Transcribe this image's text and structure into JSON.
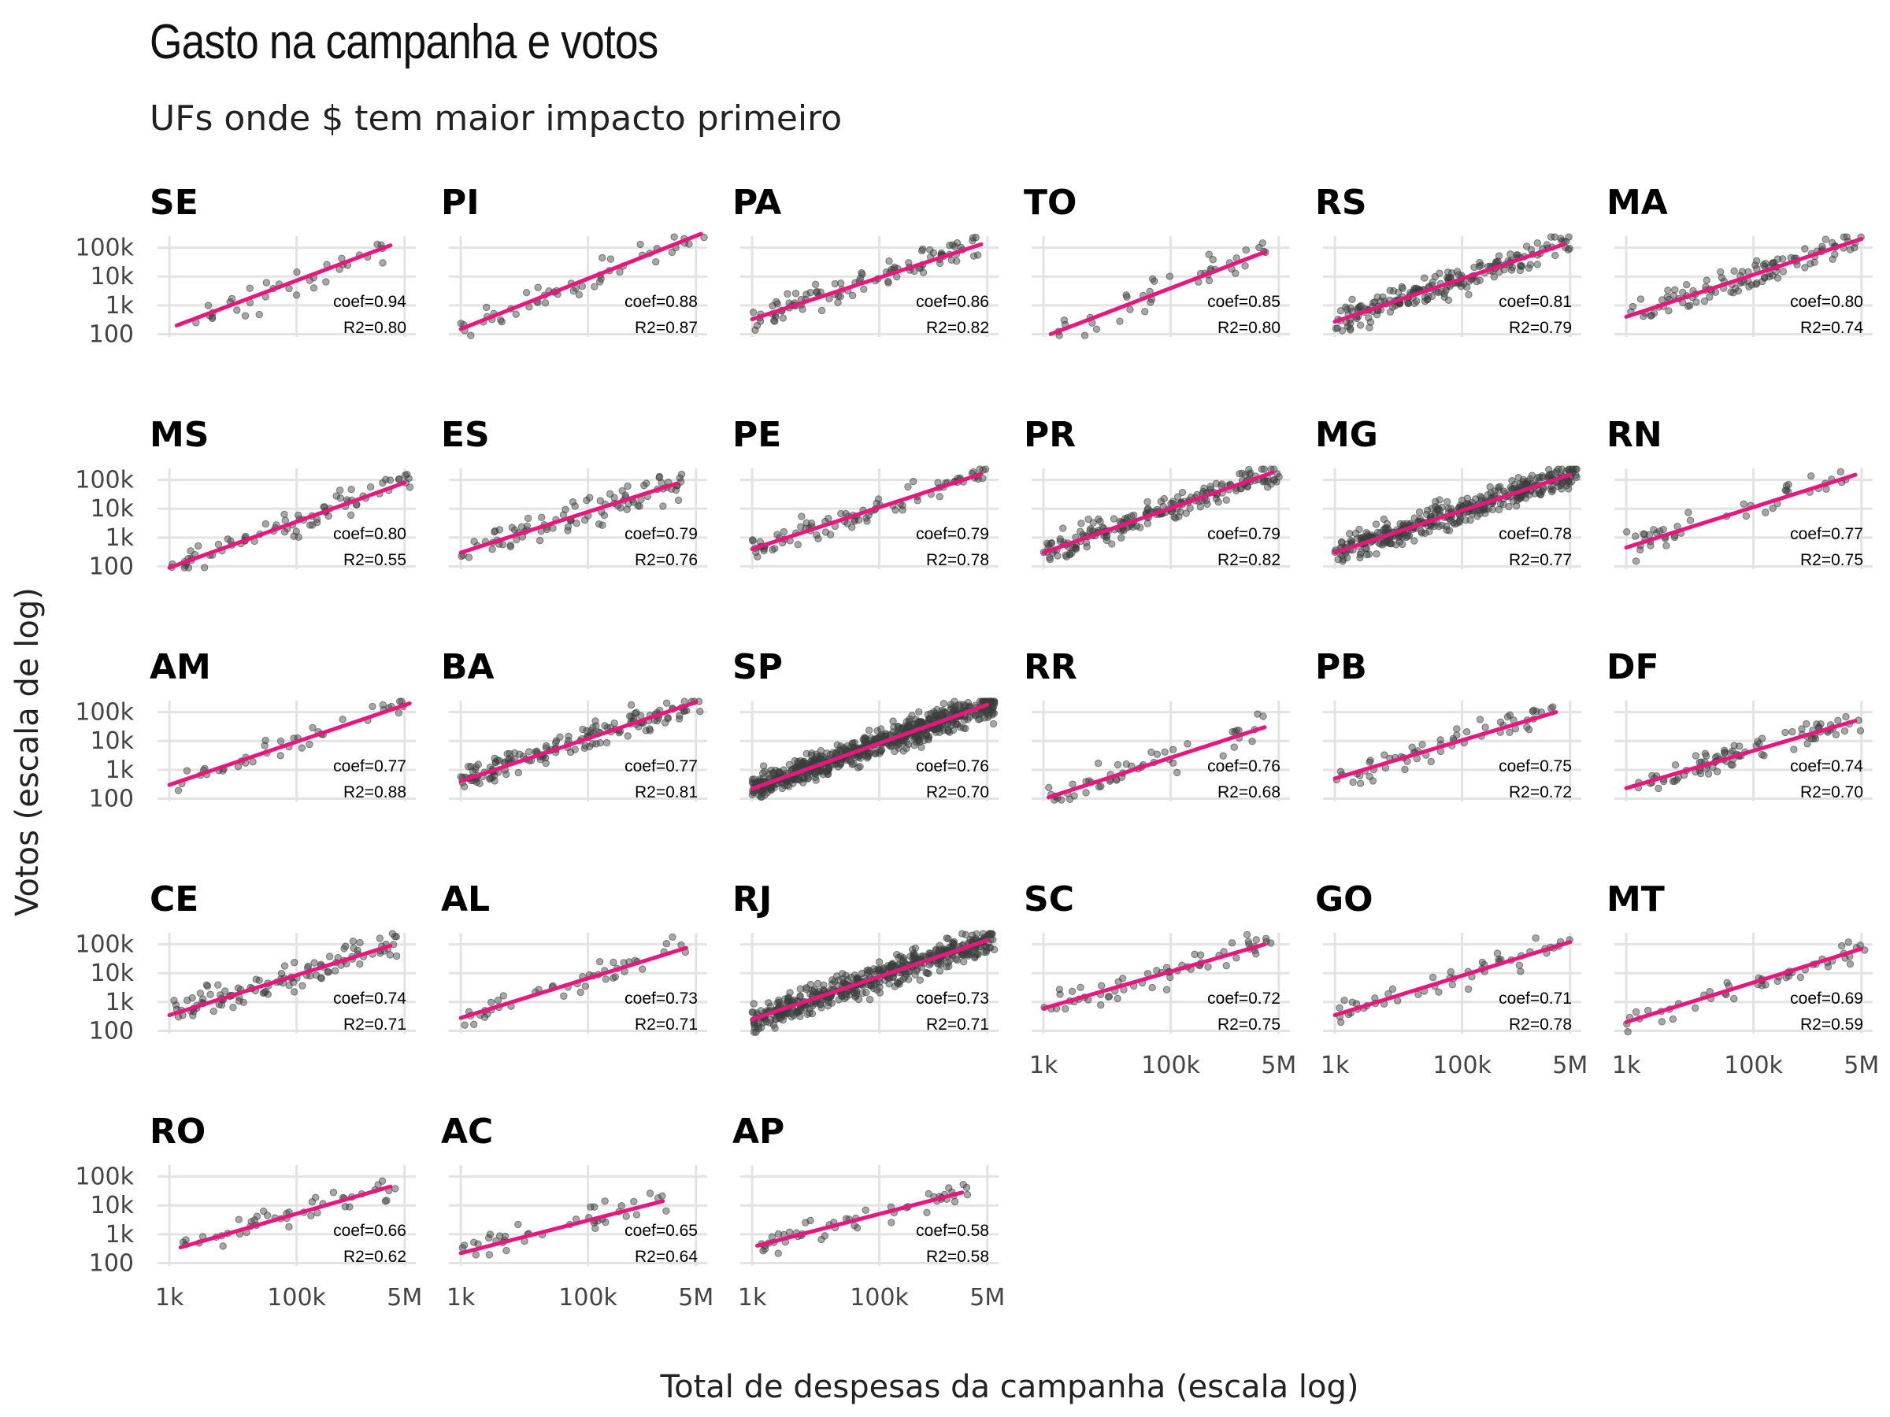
{
  "chart_data": {
    "type": "scatter",
    "title": "Gasto na campanha e votos",
    "subtitle": "UFs onde $ tem maior impacto primeiro",
    "xlabel": "Total de despesas da campanha (escala log)",
    "ylabel": "Votos (escala de log)",
    "x_scale": "log",
    "y_scale": "log",
    "x_ticks": [
      "1k",
      "100k",
      "5M"
    ],
    "y_ticks": [
      "100k",
      "10k",
      "1k",
      "100"
    ],
    "x_tick_values": [
      1000,
      100000,
      5000000
    ],
    "y_tick_values": [
      100000,
      10000,
      1000,
      100
    ],
    "xlim": [
      650,
      7500000
    ],
    "ylim": [
      80,
      250000
    ],
    "colors": {
      "points": "#3a3f3c",
      "fit_line": "#e8177e",
      "grid": "#e3e3e3"
    },
    "panels": [
      {
        "uf": "SE",
        "coef_label": "coef=0.94",
        "r2_label": "R2=0.80",
        "n": 35,
        "fit_from": [
          1300,
          200
        ],
        "fit_to": [
          3000000,
          120000
        ]
      },
      {
        "uf": "PI",
        "coef_label": "coef=0.88",
        "r2_label": "R2=0.87",
        "n": 50,
        "fit_from": [
          1000,
          150
        ],
        "fit_to": [
          6000000,
          300000
        ]
      },
      {
        "uf": "PA",
        "coef_label": "coef=0.86",
        "r2_label": "R2=0.82",
        "n": 100,
        "fit_from": [
          1000,
          330
        ],
        "fit_to": [
          4000000,
          130000
        ]
      },
      {
        "uf": "TO",
        "coef_label": "coef=0.85",
        "r2_label": "R2=0.80",
        "n": 40,
        "fit_from": [
          1300,
          100
        ],
        "fit_to": [
          3000000,
          70000
        ]
      },
      {
        "uf": "RS",
        "coef_label": "coef=0.81",
        "r2_label": "R2=0.79",
        "n": 200,
        "fit_from": [
          1000,
          270
        ],
        "fit_to": [
          4000000,
          130000
        ]
      },
      {
        "uf": "MA",
        "coef_label": "coef=0.80",
        "r2_label": "R2=0.74",
        "n": 110,
        "fit_from": [
          1000,
          400
        ],
        "fit_to": [
          5000000,
          200000
        ]
      },
      {
        "uf": "MS",
        "coef_label": "coef=0.80",
        "r2_label": "R2=0.55",
        "n": 80,
        "fit_from": [
          1000,
          90
        ],
        "fit_to": [
          5000000,
          80000
        ]
      },
      {
        "uf": "ES",
        "coef_label": "coef=0.79",
        "r2_label": "R2=0.76",
        "n": 90,
        "fit_from": [
          1000,
          300
        ],
        "fit_to": [
          2500000,
          75000
        ]
      },
      {
        "uf": "PE",
        "coef_label": "coef=0.79",
        "r2_label": "R2=0.78",
        "n": 90,
        "fit_from": [
          1000,
          400
        ],
        "fit_to": [
          4000000,
          160000
        ]
      },
      {
        "uf": "PR",
        "coef_label": "coef=0.79",
        "r2_label": "R2=0.82",
        "n": 200,
        "fit_from": [
          1000,
          300
        ],
        "fit_to": [
          4000000,
          180000
        ]
      },
      {
        "uf": "MG",
        "coef_label": "coef=0.78",
        "r2_label": "R2=0.77",
        "n": 400,
        "fit_from": [
          1000,
          300
        ],
        "fit_to": [
          5000000,
          150000
        ]
      },
      {
        "uf": "RN",
        "coef_label": "coef=0.77",
        "r2_label": "R2=0.75",
        "n": 45,
        "fit_from": [
          1000,
          450
        ],
        "fit_to": [
          4000000,
          150000
        ]
      },
      {
        "uf": "AM",
        "coef_label": "coef=0.77",
        "r2_label": "R2=0.88",
        "n": 40,
        "fit_from": [
          1000,
          300
        ],
        "fit_to": [
          6000000,
          200000
        ]
      },
      {
        "uf": "BA",
        "coef_label": "coef=0.77",
        "r2_label": "R2=0.81",
        "n": 160,
        "fit_from": [
          1000,
          400
        ],
        "fit_to": [
          5000000,
          220000
        ]
      },
      {
        "uf": "SP",
        "coef_label": "coef=0.76",
        "r2_label": "R2=0.70",
        "n": 700,
        "fit_from": [
          1000,
          220
        ],
        "fit_to": [
          5000000,
          180000
        ]
      },
      {
        "uf": "RR",
        "coef_label": "coef=0.76",
        "r2_label": "R2=0.68",
        "n": 50,
        "fit_from": [
          1200,
          110
        ],
        "fit_to": [
          3000000,
          30000
        ]
      },
      {
        "uf": "PB",
        "coef_label": "coef=0.75",
        "r2_label": "R2=0.72",
        "n": 60,
        "fit_from": [
          1000,
          500
        ],
        "fit_to": [
          3000000,
          100000
        ]
      },
      {
        "uf": "DF",
        "coef_label": "coef=0.74",
        "r2_label": "R2=0.70",
        "n": 90,
        "fit_from": [
          1000,
          230
        ],
        "fit_to": [
          4000000,
          50000
        ]
      },
      {
        "uf": "CE",
        "coef_label": "coef=0.74",
        "r2_label": "R2=0.71",
        "n": 110,
        "fit_from": [
          1000,
          350
        ],
        "fit_to": [
          3000000,
          90000
        ]
      },
      {
        "uf": "AL",
        "coef_label": "coef=0.73",
        "r2_label": "R2=0.71",
        "n": 45,
        "fit_from": [
          1000,
          280
        ],
        "fit_to": [
          3500000,
          75000
        ]
      },
      {
        "uf": "RJ",
        "coef_label": "coef=0.73",
        "r2_label": "R2=0.71",
        "n": 500,
        "fit_from": [
          1000,
          250
        ],
        "fit_to": [
          5000000,
          140000
        ]
      },
      {
        "uf": "SC",
        "coef_label": "coef=0.72",
        "r2_label": "R2=0.75",
        "n": 60,
        "fit_from": [
          1000,
          600
        ],
        "fit_to": [
          3000000,
          100000
        ]
      },
      {
        "uf": "GO",
        "coef_label": "coef=0.71",
        "r2_label": "R2=0.78",
        "n": 50,
        "fit_from": [
          1000,
          350
        ],
        "fit_to": [
          5000000,
          120000
        ]
      },
      {
        "uf": "MT",
        "coef_label": "coef=0.69",
        "r2_label": "R2=0.59",
        "n": 50,
        "fit_from": [
          1000,
          200
        ],
        "fit_to": [
          5000000,
          70000
        ]
      },
      {
        "uf": "RO",
        "coef_label": "coef=0.66",
        "r2_label": "R2=0.62",
        "n": 45,
        "fit_from": [
          1500,
          350
        ],
        "fit_to": [
          3000000,
          45000
        ]
      },
      {
        "uf": "AC",
        "coef_label": "coef=0.65",
        "r2_label": "R2=0.64",
        "n": 40,
        "fit_from": [
          1000,
          220
        ],
        "fit_to": [
          1500000,
          14000
        ]
      },
      {
        "uf": "AP",
        "coef_label": "coef=0.58",
        "r2_label": "R2=0.58",
        "n": 50,
        "fit_from": [
          1200,
          400
        ],
        "fit_to": [
          2000000,
          28000
        ]
      }
    ]
  }
}
